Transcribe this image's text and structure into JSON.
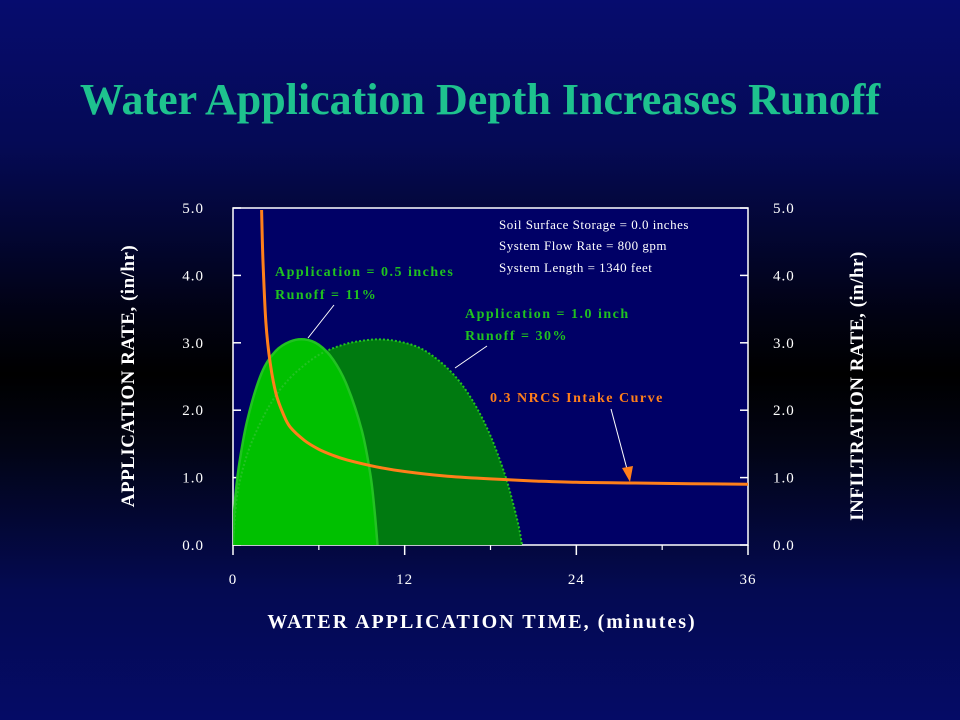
{
  "slide": {
    "title": "Water Application Depth Increases Runoff"
  },
  "colors": {
    "title": "#1ec28e",
    "plot_bg": "#000066",
    "intake_curve": "#ff7f1a",
    "app_small_fill": "#00c000",
    "app_large_fill": "#007a10",
    "app_line": "#22c222",
    "text": "#ffffff"
  },
  "chart_data": {
    "type": "line",
    "xlabel": "WATER APPLICATION TIME, (minutes)",
    "ylabel_left": "APPLICATION RATE, (in/hr)",
    "ylabel_right": "INFILTRATION RATE, (in/hr)",
    "xlim": [
      0,
      36
    ],
    "ylim": [
      0,
      5
    ],
    "x_ticks": [
      "0",
      "12",
      "24",
      "36"
    ],
    "y_ticks": [
      "0.0",
      "1.0",
      "2.0",
      "3.0",
      "4.0",
      "5.0"
    ],
    "series": [
      {
        "name": "0.3 NRCS Intake Curve",
        "style": "line",
        "x": [
          2.0,
          2.1,
          2.3,
          2.6,
          3.0,
          3.5,
          4.0,
          5.0,
          6.0,
          7.0,
          8.0,
          10.0,
          12.0,
          15.0,
          18.0,
          21.0,
          24.0,
          28.0,
          32.0,
          36.0
        ],
        "y": [
          4.97,
          4.2,
          3.3,
          2.7,
          2.25,
          1.95,
          1.75,
          1.55,
          1.42,
          1.33,
          1.26,
          1.16,
          1.09,
          1.02,
          0.98,
          0.95,
          0.93,
          0.92,
          0.91,
          0.9
        ]
      },
      {
        "name": "Application = 0.5 inches",
        "style": "filled-ellipse-line",
        "x": [
          0,
          0.1,
          0.4,
          1.0,
          2.0,
          3.0,
          4.0,
          5.0,
          6.0,
          7.0,
          8.0,
          9.0,
          9.6,
          9.9,
          10.1
        ],
        "y": [
          0,
          0.55,
          1.15,
          1.85,
          2.55,
          2.88,
          3.02,
          3.05,
          2.97,
          2.75,
          2.35,
          1.7,
          1.05,
          0.5,
          0
        ]
      },
      {
        "name": "Application = 1.0 inch",
        "style": "filled-ellipse-dotted",
        "x": [
          0,
          0.3,
          1.0,
          2.0,
          3.0,
          4.0,
          5.0,
          6.0,
          7.0,
          8.0,
          9.0,
          10.0,
          11.0,
          12.0,
          13.0,
          14.0,
          15.0,
          16.0,
          17.0,
          18.0,
          19.0,
          19.6,
          20.0,
          20.2
        ],
        "y": [
          0,
          0.75,
          1.35,
          1.85,
          2.22,
          2.48,
          2.67,
          2.82,
          2.92,
          2.99,
          3.03,
          3.05,
          3.04,
          3.0,
          2.93,
          2.8,
          2.62,
          2.38,
          2.05,
          1.62,
          1.05,
          0.6,
          0.25,
          0
        ]
      }
    ],
    "annotations": {
      "storage": "Soil Surface Storage  =  0.0 inches",
      "flow": "System Flow Rate = 800 gpm",
      "length": "System Length = 1340 feet",
      "app_small": "Application  = 0.5 inches",
      "runoff_small": "Runoff  =  11%",
      "app_large": "Application  = 1.0 inch",
      "runoff_large": "Runoff  =  30%",
      "intake": "0.3 NRCS Intake Curve"
    }
  }
}
